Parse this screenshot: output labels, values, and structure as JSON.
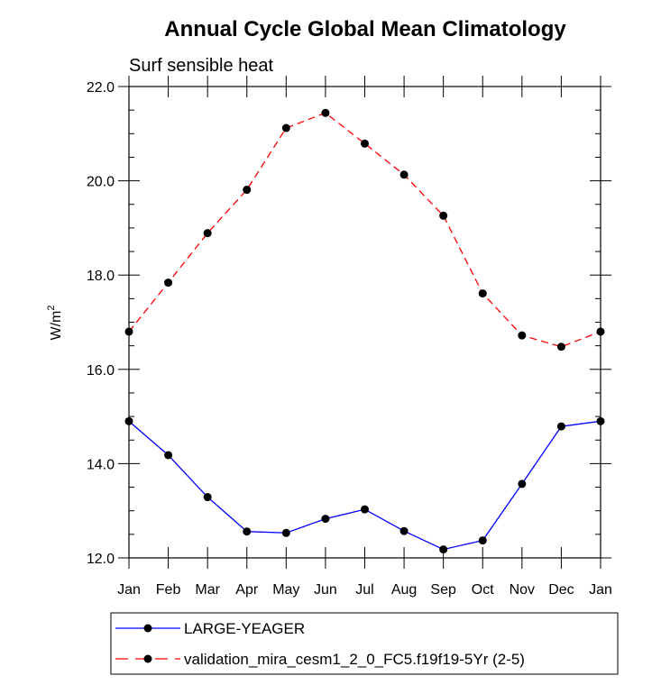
{
  "chart_data": {
    "type": "line",
    "title": "Annual Cycle Global Mean Climatology",
    "subtitle": "Surf sensible heat",
    "ylabel_base": "W/m",
    "ylabel_sup": "2",
    "xlabel": "",
    "ylim": [
      12.0,
      22.0
    ],
    "yticks": [
      12.0,
      14.0,
      16.0,
      18.0,
      20.0,
      22.0
    ],
    "ytick_labels": [
      "12.0",
      "14.0",
      "16.0",
      "18.0",
      "20.0",
      "22.0"
    ],
    "categories": [
      "Jan",
      "Feb",
      "Mar",
      "Apr",
      "May",
      "Jun",
      "Jul",
      "Aug",
      "Sep",
      "Oct",
      "Nov",
      "Dec",
      "Jan"
    ],
    "legend_position": "bottom",
    "grid": false,
    "series": [
      {
        "name": "LARGE-YEAGER",
        "color": "#0000ff",
        "line_style": "solid",
        "values": [
          14.9,
          14.18,
          13.29,
          12.56,
          12.53,
          12.83,
          13.03,
          12.57,
          12.18,
          12.37,
          13.57,
          14.79,
          14.9
        ]
      },
      {
        "name": "validation_mira_cesm1_2_0_FC5.f19f19-5Yr (2-5)",
        "color": "#ff0000",
        "line_style": "dashed",
        "values": [
          16.8,
          17.84,
          18.89,
          19.81,
          21.12,
          21.44,
          20.79,
          20.13,
          19.26,
          17.61,
          16.72,
          16.48,
          16.8
        ]
      }
    ]
  }
}
